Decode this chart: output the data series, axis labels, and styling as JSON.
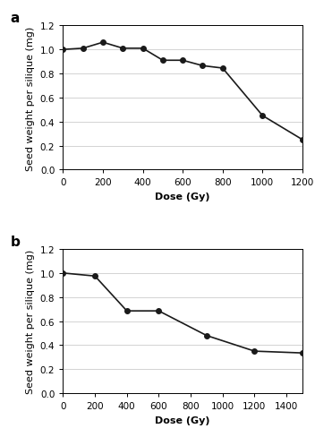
{
  "panel_a": {
    "label": "a",
    "x": [
      0,
      100,
      200,
      300,
      400,
      500,
      600,
      700,
      800,
      1000,
      1200
    ],
    "y": [
      1.0,
      1.01,
      1.06,
      1.01,
      1.01,
      0.91,
      0.91,
      0.865,
      0.845,
      0.45,
      0.25
    ],
    "xlim": [
      0,
      1200
    ],
    "xticks": [
      0,
      200,
      400,
      600,
      800,
      1000,
      1200
    ],
    "ylim": [
      0,
      1.2
    ],
    "yticks": [
      0,
      0.2,
      0.4,
      0.6,
      0.8,
      1.0,
      1.2
    ],
    "xlabel": "Dose (Gy)",
    "ylabel": "Seed weight per silique (mg)"
  },
  "panel_b": {
    "label": "b",
    "x": [
      0,
      200,
      400,
      600,
      900,
      1200,
      1500
    ],
    "y": [
      1.0,
      0.975,
      0.685,
      0.685,
      0.48,
      0.35,
      0.335
    ],
    "xlim": [
      0,
      1500
    ],
    "xticks": [
      0,
      200,
      400,
      600,
      800,
      1000,
      1200,
      1400
    ],
    "ylim": [
      0,
      1.2
    ],
    "yticks": [
      0,
      0.2,
      0.4,
      0.6,
      0.8,
      1.0,
      1.2
    ],
    "xlabel": "Dose (Gy)",
    "ylabel": "Seed weight per silique (mg)"
  },
  "line_color": "#1a1a1a",
  "marker": "o",
  "markersize": 4,
  "linewidth": 1.2,
  "label_fontsize": 8,
  "tick_fontsize": 7.5,
  "panel_label_fontsize": 11,
  "xlabel_fontweight": "bold",
  "background_color": "#ffffff",
  "grid_color": "#cccccc",
  "grid_linewidth": 0.6
}
